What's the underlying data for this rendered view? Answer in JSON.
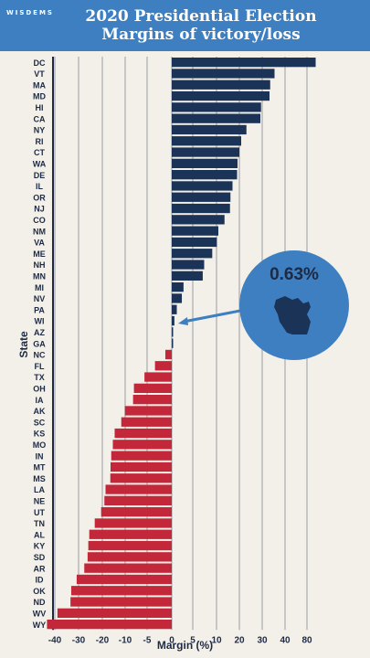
{
  "header": {
    "brand": "WISDEMS",
    "title_line1": "2020 Presidential Election",
    "title_line2": "Margins of victory/loss"
  },
  "callout": {
    "value_text": "0.63%",
    "icon": "wisconsin-state-icon"
  },
  "colors": {
    "background": "#f3f0e9",
    "header": "#3d7fc0",
    "democrat": "#1c3358",
    "republican": "#c3283a",
    "callout": "#3d7fc0",
    "grid": "#c6c6c6"
  },
  "chart_data": {
    "type": "bar",
    "orientation": "horizontal",
    "xlabel": "Margin (%)",
    "ylabel": "State",
    "xlim": [
      -40,
      90
    ],
    "xticks": [
      -40,
      -30,
      -20,
      -10,
      -5,
      0,
      5,
      10,
      20,
      30,
      40,
      80
    ],
    "categories": [
      "DC",
      "VT",
      "MA",
      "MD",
      "HI",
      "CA",
      "NY",
      "RI",
      "CT",
      "WA",
      "DE",
      "IL",
      "OR",
      "NJ",
      "CO",
      "NM",
      "VA",
      "ME",
      "NH",
      "MN",
      "MI",
      "NV",
      "PA",
      "WI",
      "AZ",
      "GA",
      "NC",
      "FL",
      "TX",
      "OH",
      "IA",
      "AK",
      "SC",
      "KS",
      "MO",
      "IN",
      "MT",
      "MS",
      "LA",
      "NE",
      "UT",
      "TN",
      "AL",
      "KY",
      "SD",
      "AR",
      "ID",
      "OK",
      "ND",
      "WV",
      "WY"
    ],
    "values": [
      86.8,
      35.4,
      33.5,
      33.2,
      29.5,
      29.2,
      23.1,
      20.8,
      20.0,
      19.2,
      19.0,
      17.0,
      16.1,
      15.9,
      13.5,
      10.8,
      10.1,
      9.1,
      7.4,
      7.1,
      2.8,
      2.4,
      1.2,
      0.63,
      0.3,
      0.24,
      -1.3,
      -3.4,
      -5.6,
      -8.0,
      -8.2,
      -10.1,
      -11.7,
      -14.6,
      -15.4,
      -16.1,
      -16.4,
      -16.5,
      -18.6,
      -19.1,
      -20.5,
      -23.2,
      -25.5,
      -25.9,
      -26.2,
      -27.6,
      -30.8,
      -33.1,
      -33.4,
      -38.9,
      -43.3
    ],
    "x_axis": "non-linear (tick spacing uneven near 0 and beyond 40)",
    "grid": true,
    "legend": "none"
  }
}
